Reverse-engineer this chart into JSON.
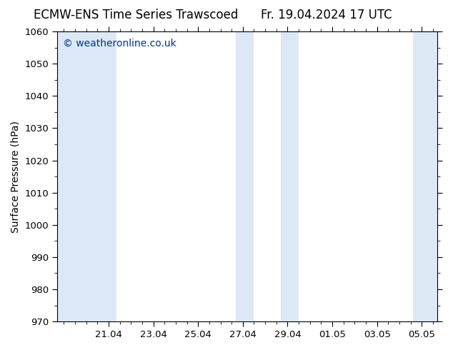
{
  "title_left": "ECMW-ENS Time Series Trawscoed",
  "title_right": "Fr. 19.04.2024 17 UTC",
  "ylabel": "Surface Pressure (hPa)",
  "ylim": [
    970,
    1060
  ],
  "yticks": [
    970,
    980,
    990,
    1000,
    1010,
    1020,
    1030,
    1040,
    1050,
    1060
  ],
  "xtick_labels": [
    "21.04",
    "23.04",
    "25.04",
    "27.04",
    "29.04",
    "01.05",
    "03.05",
    "05.05"
  ],
  "shaded_color": "#dce8f5",
  "background_color": "#ffffff",
  "watermark_text": "© weatheronline.co.uk",
  "watermark_color": "#003399",
  "title_fontsize": 12,
  "axis_label_fontsize": 10,
  "tick_fontsize": 9.5,
  "watermark_fontsize": 10
}
